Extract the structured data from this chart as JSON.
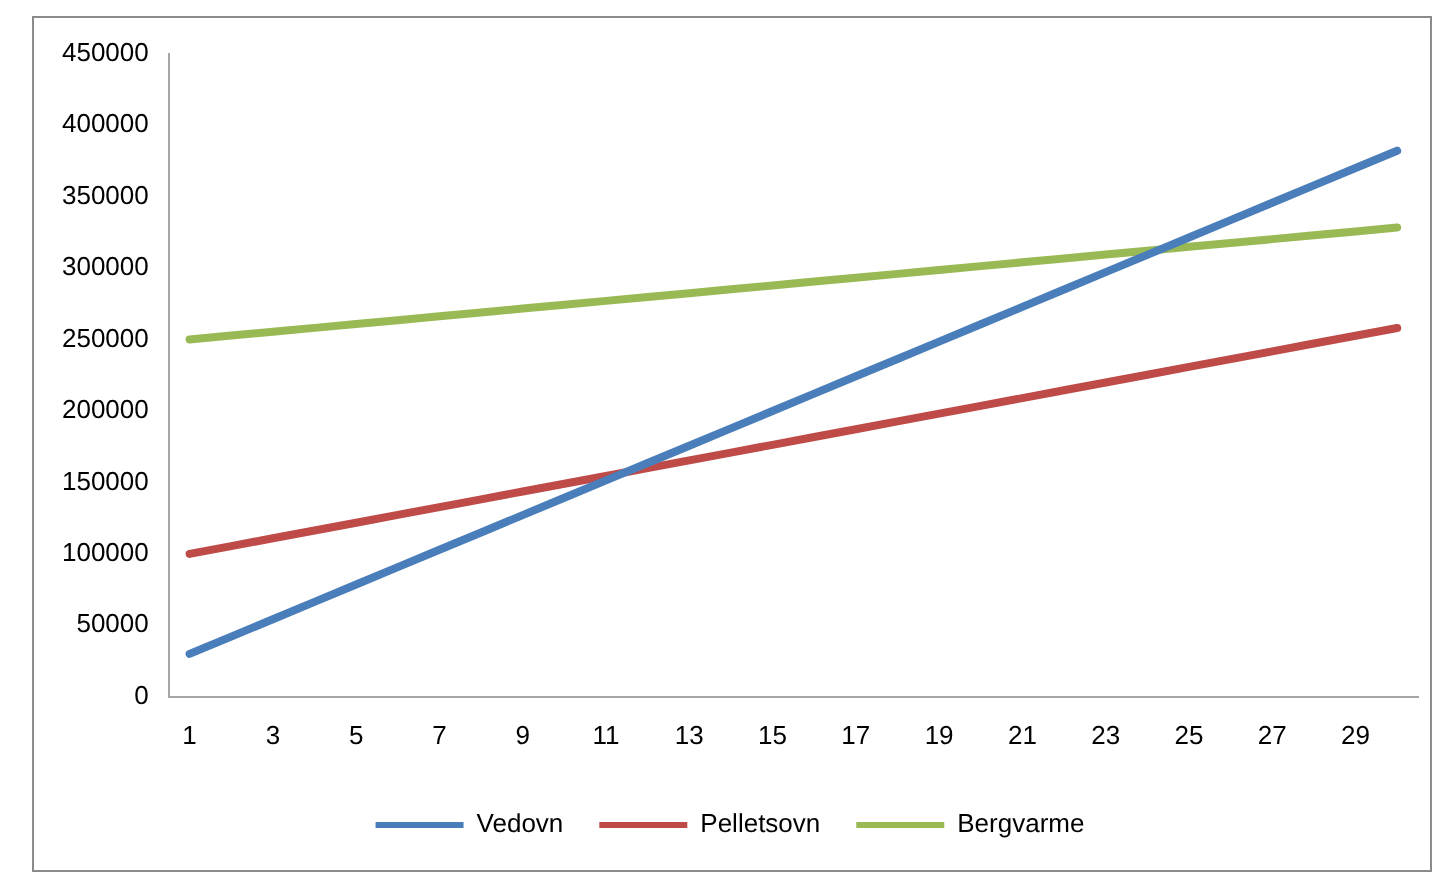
{
  "chart_data": {
    "type": "line",
    "x": [
      1,
      2,
      3,
      4,
      5,
      6,
      7,
      8,
      9,
      10,
      11,
      12,
      13,
      14,
      15,
      16,
      17,
      18,
      19,
      20,
      21,
      22,
      23,
      24,
      25,
      26,
      27,
      28,
      29,
      30
    ],
    "xlim": [
      0.5,
      30.5
    ],
    "xticks": [
      1,
      3,
      5,
      7,
      9,
      11,
      13,
      15,
      17,
      19,
      21,
      23,
      25,
      27,
      29
    ],
    "series": [
      {
        "name": "Vedovn",
        "color": "#4a7ebb",
        "values": [
          30000,
          42140,
          54280,
          66420,
          78560,
          90700,
          102840,
          114980,
          127120,
          139260,
          151400,
          163540,
          175680,
          187820,
          199960,
          212100,
          224240,
          236380,
          248520,
          260660,
          272800,
          284940,
          297080,
          309220,
          321360,
          333500,
          345640,
          357780,
          369920,
          382060
        ]
      },
      {
        "name": "Pelletsovn",
        "color": "#be4b48",
        "values": [
          100000,
          105450,
          110900,
          116350,
          121800,
          127250,
          132700,
          138150,
          143600,
          149050,
          154500,
          159950,
          165400,
          170850,
          176300,
          181750,
          187200,
          192650,
          198100,
          203550,
          209000,
          214450,
          219900,
          225350,
          230800,
          236250,
          241700,
          247150,
          252600,
          258050
        ]
      },
      {
        "name": "Bergvarme",
        "color": "#98b954",
        "values": [
          250000,
          252700,
          255400,
          258100,
          260800,
          263500,
          266200,
          268900,
          271600,
          274300,
          277000,
          279700,
          282400,
          285100,
          287800,
          290500,
          293200,
          295900,
          298600,
          301300,
          304000,
          306700,
          309400,
          312100,
          314800,
          317500,
          320200,
          322900,
          325600,
          328300
        ]
      }
    ],
    "ylim": [
      0,
      450000
    ],
    "yticks": [
      0,
      50000,
      100000,
      150000,
      200000,
      250000,
      300000,
      350000,
      400000,
      450000
    ],
    "grid": false,
    "legend": "bottom",
    "marker": "none",
    "line_style": "solid"
  }
}
